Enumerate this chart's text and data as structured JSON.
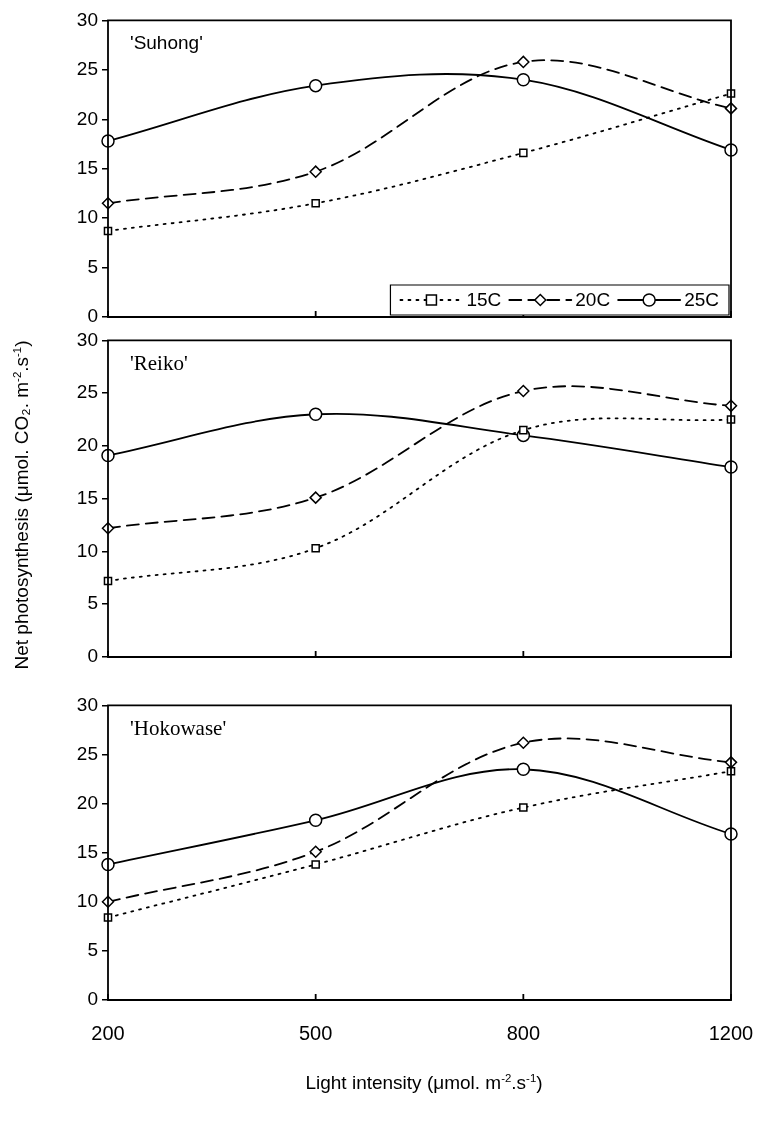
{
  "chart_data": [
    {
      "type": "line",
      "title": "'Suhong'",
      "categories": [
        "200",
        "500",
        "800",
        "1200"
      ],
      "ylim": [
        0,
        30
      ],
      "yticks": [
        0,
        5,
        10,
        15,
        20,
        25,
        30
      ],
      "tick_labels": "y",
      "legend": "bottom right",
      "series": [
        {
          "name": "15C",
          "color": "#000000",
          "marker": "square",
          "line_style": "dotted",
          "values": [
            8.7,
            11.5,
            16.6,
            22.6
          ]
        },
        {
          "name": "20C",
          "color": "#000000",
          "marker": "diamond",
          "line_style": "dashed",
          "values": [
            11.5,
            14.7,
            25.8,
            21.1
          ]
        },
        {
          "name": "25C",
          "color": "#000000",
          "marker": "circle",
          "line_style": "solid",
          "values": [
            17.8,
            23.4,
            24.0,
            16.9
          ]
        }
      ]
    },
    {
      "type": "line",
      "title": "'Reiko'",
      "ylabel": "Net photosynthesis (μmol. CO₂. m$^{-2}$.s$^{-1}$)",
      "categories": [
        "200",
        "500",
        "800",
        "1200"
      ],
      "ylim": [
        0,
        30
      ],
      "yticks": [
        0,
        5,
        10,
        15,
        20,
        25,
        30
      ],
      "tick_labels": "y",
      "series": [
        {
          "color": "#000000",
          "marker": "square",
          "line_style": "dotted",
          "values": [
            7.2,
            10.3,
            21.5,
            22.5
          ]
        },
        {
          "color": "#000000",
          "marker": "diamond",
          "line_style": "dashed",
          "values": [
            12.2,
            15.1,
            25.2,
            23.8
          ]
        },
        {
          "color": "#000000",
          "marker": "circle",
          "line_style": "solid",
          "values": [
            19.1,
            23.0,
            21.0,
            18.0
          ]
        }
      ]
    },
    {
      "type": "line",
      "title": "'Hokowase'",
      "xlabel": "Light intensity (μmol. m$^{-2}$.s$^{-1}$)",
      "categories": [
        "200",
        "500",
        "800",
        "1200"
      ],
      "ylim": [
        0,
        30
      ],
      "yticks": [
        0,
        5,
        10,
        15,
        20,
        25,
        30
      ],
      "series": [
        {
          "color": "#000000",
          "marker": "square",
          "line_style": "dotted",
          "values": [
            8.4,
            13.8,
            19.6,
            23.3
          ]
        },
        {
          "color": "#000000",
          "marker": "diamond",
          "line_style": "dashed",
          "values": [
            10.0,
            15.1,
            26.2,
            24.2
          ]
        },
        {
          "color": "#000000",
          "marker": "circle",
          "line_style": "solid",
          "values": [
            13.8,
            18.3,
            23.5,
            16.9
          ]
        }
      ]
    }
  ]
}
